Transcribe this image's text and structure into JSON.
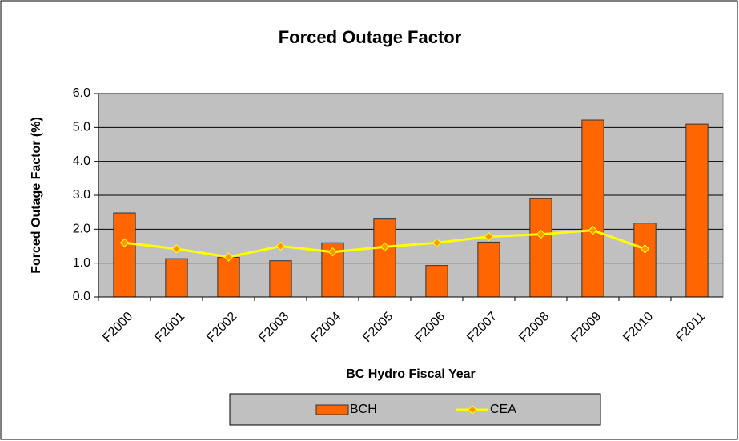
{
  "chart_data": {
    "type": "bar",
    "title": "Forced Outage Factor",
    "y_label": "Forced Outage Factor (%)",
    "x_label": "BC Hydro Fiscal Year",
    "categories": [
      "F2000",
      "F2001",
      "F2002",
      "F2003",
      "F2004",
      "F2005",
      "F2006",
      "F2007",
      "F2008",
      "F2009",
      "F2010",
      "F2011"
    ],
    "series": [
      {
        "name": "BCH",
        "type": "bar",
        "color": "#ff6600",
        "values": [
          2.48,
          1.13,
          1.17,
          1.07,
          1.6,
          2.3,
          0.93,
          1.62,
          2.9,
          5.22,
          2.18,
          5.1
        ]
      },
      {
        "name": "CEA",
        "type": "line",
        "color": "#ffff00",
        "marker_color": "#ff9900",
        "values": [
          1.6,
          1.42,
          1.18,
          1.5,
          1.33,
          1.48,
          1.6,
          1.78,
          1.85,
          1.97,
          1.42,
          null
        ]
      }
    ],
    "ylim": [
      0,
      6
    ],
    "yticks": [
      {
        "value": 0,
        "label": "0.0"
      },
      {
        "value": 1,
        "label": "1.0"
      },
      {
        "value": 2,
        "label": "2.0"
      },
      {
        "value": 3,
        "label": "3.0"
      },
      {
        "value": 4,
        "label": "4.0"
      },
      {
        "value": 5,
        "label": "5.0"
      },
      {
        "value": 6,
        "label": "6.0"
      }
    ],
    "grid": true,
    "legend": "bottom"
  }
}
